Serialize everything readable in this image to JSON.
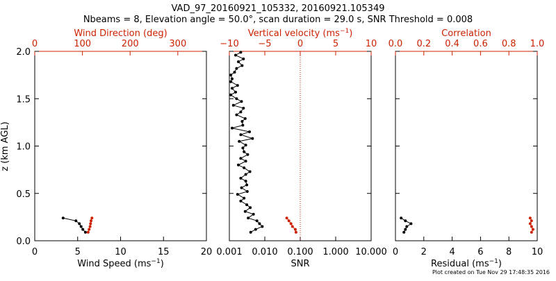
{
  "title_line1": "VAD_97_20160921_105332, 20160921.105349",
  "title_line2": "Nbeams = 8, Elevation angle = 50.0°, scan duration = 29.0 s, SNR Threshold = 0.008",
  "footer": "Plot created on Tue Nov 29 17:48:35 2016",
  "colors": {
    "primary": "#000000",
    "secondary": "#cc2200"
  },
  "chart_data": [
    {
      "type": "line",
      "name": "wind-panel",
      "ylabel": "z (km AGL)",
      "ylim": [
        0,
        2
      ],
      "yticks": [
        "0.0",
        "0.5",
        "1.0",
        "1.5",
        "2.0"
      ],
      "bottom_axis": {
        "label": "Wind Speed (ms",
        "label_sup": "−1",
        "label_tail": ")",
        "xlim": [
          0,
          20
        ],
        "ticks": [
          "0",
          "5",
          "10",
          "15",
          "20"
        ]
      },
      "top_axis": {
        "label": "Wind Direction (deg)",
        "xlim": [
          0,
          360
        ],
        "ticks": [
          "0",
          "100",
          "200",
          "300"
        ]
      },
      "series": [
        {
          "name": "Wind Speed",
          "axis": "bottom",
          "color": "black",
          "z": [
            0.24,
            0.21,
            0.18,
            0.15,
            0.12,
            0.09
          ],
          "values": [
            3.3,
            4.8,
            5.2,
            5.4,
            5.6,
            5.9
          ]
        },
        {
          "name": "Wind Direction",
          "axis": "top",
          "color": "red",
          "z": [
            0.24,
            0.21,
            0.18,
            0.15,
            0.12,
            0.09
          ],
          "values": [
            120,
            118,
            117,
            116,
            114,
            112
          ]
        }
      ]
    },
    {
      "type": "line",
      "name": "snr-panel",
      "bottom_axis": {
        "label": "SNR",
        "scale": "log",
        "xlim": [
          0.001,
          10
        ],
        "ticks": [
          "0.001",
          "0.010",
          "0.100",
          "1.000",
          "10.000"
        ]
      },
      "top_axis": {
        "label": "Vertical velocity (ms",
        "label_sup": "−1",
        "label_tail": ")",
        "xlim": [
          -10,
          10
        ],
        "ticks": [
          "−10",
          "−5",
          "0",
          "5",
          "10"
        ]
      },
      "reference_line": {
        "axis": "top",
        "value": 0,
        "style": "dotted"
      },
      "series": [
        {
          "name": "SNR",
          "axis": "bottom",
          "color": "black",
          "z": [
            1.99,
            1.96,
            1.92,
            1.89,
            1.85,
            1.82,
            1.78,
            1.75,
            1.71,
            1.68,
            1.64,
            1.61,
            1.57,
            1.54,
            1.5,
            1.47,
            1.43,
            1.4,
            1.36,
            1.33,
            1.29,
            1.26,
            1.22,
            1.19,
            1.15,
            1.12,
            1.08,
            1.05,
            1.01,
            0.98,
            0.94,
            0.91,
            0.87,
            0.84,
            0.8,
            0.77,
            0.73,
            0.7,
            0.66,
            0.63,
            0.59,
            0.56,
            0.52,
            0.49,
            0.45,
            0.42,
            0.38,
            0.35,
            0.31,
            0.28,
            0.24,
            0.21,
            0.18,
            0.15,
            0.12,
            0.09
          ],
          "values": [
            0.0021,
            0.0015,
            0.0025,
            0.0018,
            0.0023,
            0.0016,
            0.0014,
            0.0011,
            0.0012,
            0.0011,
            0.0017,
            0.0012,
            0.0015,
            0.0011,
            0.0016,
            0.0022,
            0.0013,
            0.0025,
            0.0021,
            0.0016,
            0.0028,
            0.0023,
            0.0024,
            0.0012,
            0.0037,
            0.0021,
            0.0045,
            0.0019,
            0.0029,
            0.0024,
            0.0026,
            0.0033,
            0.0021,
            0.0029,
            0.0018,
            0.0026,
            0.0038,
            0.0029,
            0.0021,
            0.0029,
            0.0031,
            0.0022,
            0.0032,
            0.0017,
            0.0026,
            0.0021,
            0.0031,
            0.0039,
            0.0028,
            0.0048,
            0.0034,
            0.006,
            0.0071,
            0.0085,
            0.0055,
            0.004
          ]
        },
        {
          "name": "Vertical velocity",
          "axis": "top",
          "color": "red",
          "z": [
            0.24,
            0.21,
            0.18,
            0.15,
            0.12,
            0.09
          ],
          "values": [
            -1.9,
            -1.6,
            -1.3,
            -1.1,
            -0.7,
            -0.6
          ]
        }
      ]
    },
    {
      "type": "line",
      "name": "residual-panel",
      "bottom_axis": {
        "label": "Residual (ms",
        "label_sup": "−1",
        "label_tail": ")",
        "xlim": [
          0,
          10
        ],
        "ticks": [
          "0",
          "2",
          "4",
          "6",
          "8",
          "10"
        ]
      },
      "top_axis": {
        "label": "Correlation",
        "xlim": [
          0,
          1
        ],
        "ticks": [
          "0.0",
          "0.2",
          "0.4",
          "0.6",
          "0.8",
          "1.0"
        ]
      },
      "series": [
        {
          "name": "Residual",
          "axis": "bottom",
          "color": "black",
          "z": [
            0.24,
            0.21,
            0.18,
            0.15,
            0.12,
            0.09
          ],
          "values": [
            0.4,
            0.7,
            1.1,
            0.8,
            0.7,
            0.6
          ]
        },
        {
          "name": "Correlation",
          "axis": "top",
          "color": "red",
          "z": [
            0.24,
            0.21,
            0.18,
            0.15,
            0.12,
            0.09
          ],
          "values": [
            0.95,
            0.96,
            0.95,
            0.96,
            0.97,
            0.96
          ]
        }
      ]
    }
  ]
}
